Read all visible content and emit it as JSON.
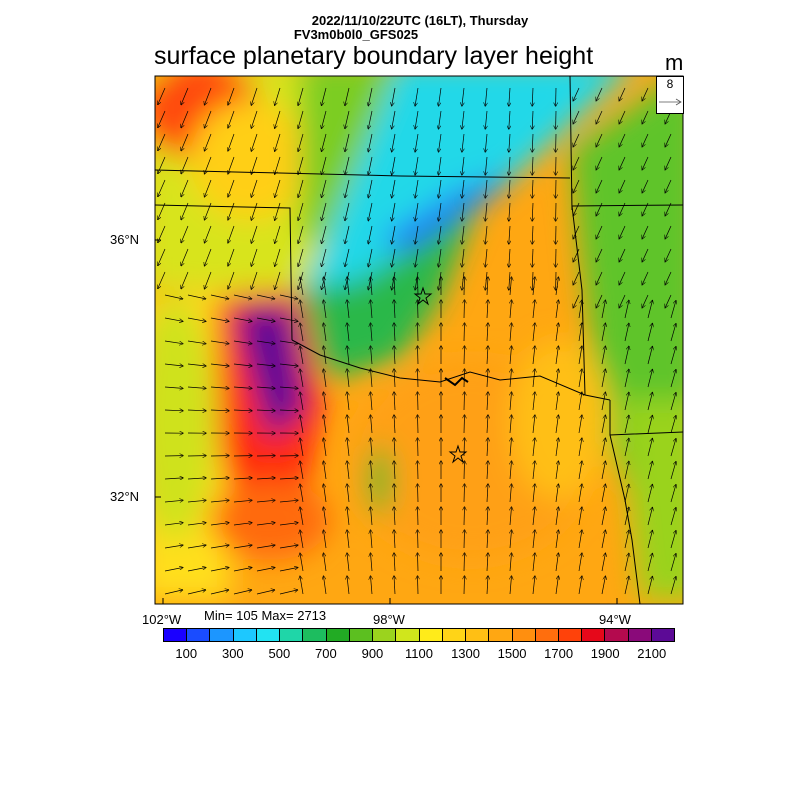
{
  "header": {
    "datetime": "2022/11/10/22UTC (16LT), Thursday",
    "model": "FV3m0b0l0_GFS025",
    "title": "surface planetary boundary layer height",
    "unit": "m"
  },
  "reference_vector": {
    "label": "8"
  },
  "axes": {
    "lat_labels": [
      "36°N",
      "32°N"
    ],
    "lon_labels": [
      "102°W",
      "98°W",
      "94°W"
    ]
  },
  "stats": {
    "text": "Min= 105 Max= 2713"
  },
  "colorbar": {
    "colors": [
      "#1a00ff",
      "#1a4cff",
      "#1c96ff",
      "#1dc8ff",
      "#22e3f2",
      "#1fd6a8",
      "#1dbd5f",
      "#22ab24",
      "#5cbf20",
      "#9bd31e",
      "#d0e61c",
      "#ffeb1a",
      "#ffd417",
      "#ffbf14",
      "#ffa712",
      "#ff8f0f",
      "#ff6e0d",
      "#ff420a",
      "#e6081a",
      "#b40a4e",
      "#8a0a7a",
      "#5c0a96"
    ],
    "labels": [
      "100",
      "300",
      "500",
      "700",
      "900",
      "1100",
      "1300",
      "1500",
      "1700",
      "1900",
      "2100"
    ]
  },
  "markers": [
    "star",
    "star"
  ]
}
